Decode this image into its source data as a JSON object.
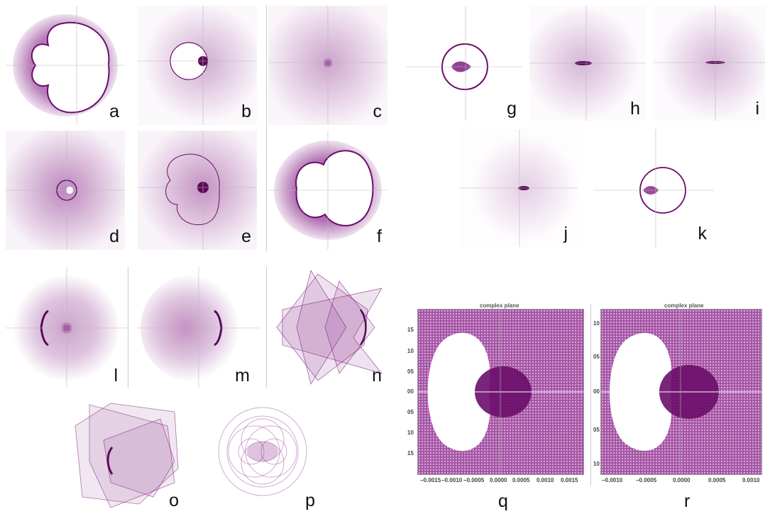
{
  "labels": {
    "a": "a",
    "b": "b",
    "c": "c",
    "d": "d",
    "e": "e",
    "f": "f",
    "g": "g",
    "h": "h",
    "i": "i",
    "j": "j",
    "k": "k",
    "l": "l",
    "m": "m",
    "n": "n",
    "o": "o",
    "p": "p",
    "q": "q",
    "r": "r"
  },
  "colors": {
    "ink": "#7a0f7a",
    "axis": "#b8b8b8",
    "background": "#ffffff"
  },
  "plot_q": {
    "title": "complex plane",
    "x_ticks": [
      "−0.0015",
      "−0.0010",
      "−0.0005",
      "0.0000",
      "0.0005",
      "0.0010",
      "0.0015"
    ],
    "y_ticks": [
      "15",
      "10",
      "05",
      "00",
      "05",
      "10",
      "15"
    ]
  },
  "plot_r": {
    "title": "complex plane",
    "x_ticks": [
      "−0.0010",
      "−0.0005",
      "0.0000",
      "0.0005",
      "0.0010"
    ],
    "y_ticks": [
      "10",
      "05",
      "00",
      "05",
      "10"
    ]
  }
}
